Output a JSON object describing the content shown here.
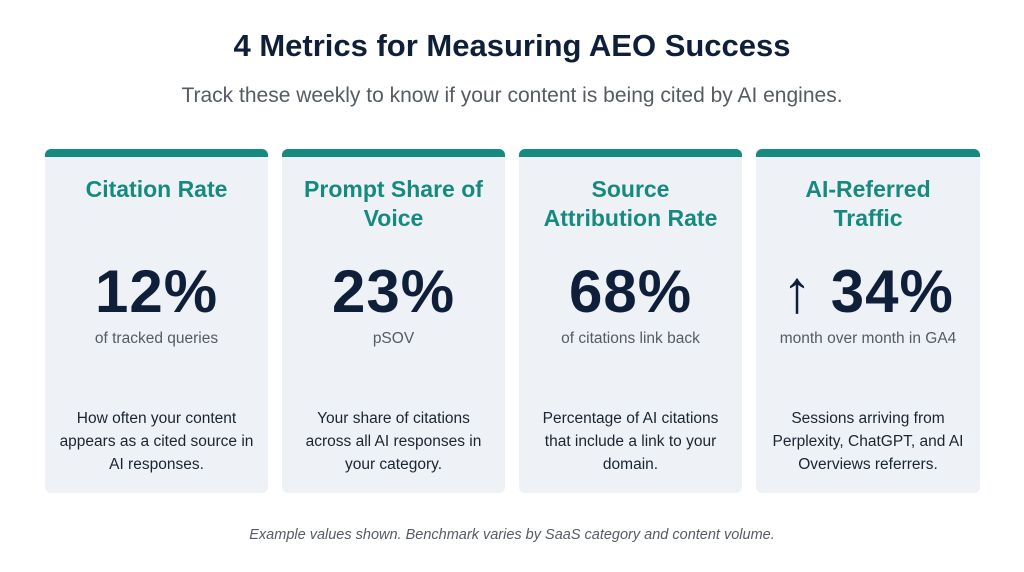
{
  "header": {
    "title": "4 Metrics for Measuring AEO Success",
    "subtitle": "Track these weekly to know if your content is being cited by AI engines."
  },
  "colors": {
    "accent": "#178a80",
    "card_bg": "#eef2f6",
    "number": "#0f1f3a"
  },
  "cards": [
    {
      "title": "Citation Rate",
      "value": "12%",
      "value_label": "of tracked queries",
      "description": "How often your content appears as a cited source in AI responses."
    },
    {
      "title": "Prompt Share of Voice",
      "value": "23%",
      "value_label": "pSOV",
      "description": "Your share of citations across all AI responses in your category."
    },
    {
      "title": "Source Attribution Rate",
      "value": "68%",
      "value_label": "of citations link back",
      "description": "Percentage of AI citations that include a link to your domain."
    },
    {
      "title": "AI-Referred Traffic",
      "value": "↑ 34%",
      "value_icon": "arrow-up-icon",
      "value_label": "month over month in GA4",
      "description": "Sessions arriving from Perplexity, ChatGPT, and AI Overviews referrers."
    }
  ],
  "footer": "Example values shown. Benchmark varies by SaaS category and content volume."
}
